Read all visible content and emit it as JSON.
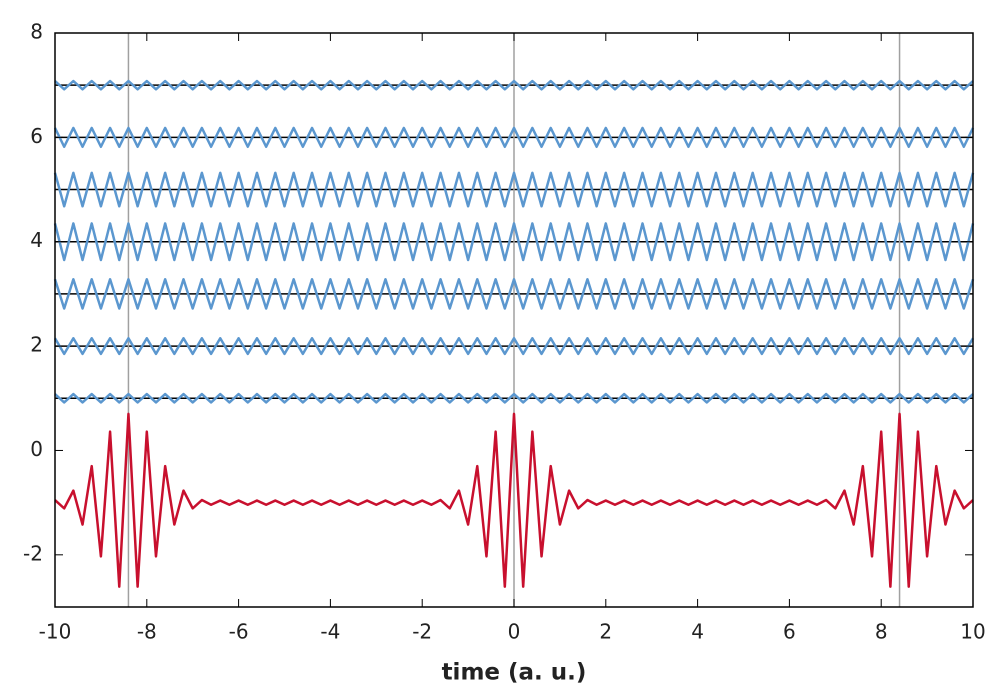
{
  "chart_data": {
    "type": "line",
    "xlabel": "time (a. u.)",
    "xlim": [
      -10,
      10
    ],
    "ylim": [
      -3,
      8
    ],
    "xticks": [
      -10,
      -8,
      -6,
      -4,
      -2,
      0,
      2,
      4,
      6,
      8,
      10
    ],
    "yticks": [
      -2,
      0,
      2,
      4,
      6,
      8
    ],
    "grid": false,
    "vlines": [
      -8.4,
      0,
      8.4
    ],
    "vline_color": "#a0a0a0",
    "hlines": [
      1,
      2,
      3,
      4,
      5,
      6,
      7
    ],
    "hline_color": "#000000",
    "x": [
      -10,
      -9.8,
      -9.6,
      -9.4,
      -9.2,
      -9,
      -8.8,
      -8.6,
      -8.4,
      -8.2,
      -8,
      -7.8,
      -7.6,
      -7.4,
      -7.2,
      -7,
      -6.8,
      -6.6,
      -6.4,
      -6.2,
      -6,
      -5.8,
      -5.6,
      -5.4,
      -5.2,
      -5,
      -4.8,
      -4.6,
      -4.4,
      -4.2,
      -4,
      -3.8,
      -3.6,
      -3.4,
      -3.2,
      -3,
      -2.8,
      -2.6,
      -2.4,
      -2.2,
      -2,
      -1.8,
      -1.6,
      -1.4,
      -1.2,
      -1,
      -0.8,
      -0.6,
      -0.4,
      -0.2,
      0,
      0.2,
      0.4,
      0.6,
      0.8,
      1,
      1.2,
      1.4,
      1.6,
      1.8,
      2,
      2.2,
      2.4,
      2.6,
      2.8,
      3,
      3.2,
      3.4,
      3.6,
      3.8,
      4,
      4.2,
      4.4,
      4.6,
      4.8,
      5,
      5.2,
      5.4,
      5.6,
      5.8,
      6,
      6.2,
      6.4,
      6.6,
      6.8,
      7,
      7.2,
      7.4,
      7.6,
      7.8,
      8,
      8.2,
      8.4,
      8.6,
      8.8,
      9,
      9.2,
      9.4,
      9.6,
      9.8,
      10
    ],
    "series": [
      {
        "color": "#c8102e",
        "values": [
          -0.95,
          -1.11,
          -0.77,
          -1.42,
          -0.3,
          -2.03,
          0.36,
          -2.61,
          0.7,
          -2.61,
          0.36,
          -2.03,
          -0.3,
          -1.42,
          -0.77,
          -1.11,
          -0.95,
          -1.04,
          -0.96,
          -1.04,
          -0.96,
          -1.04,
          -0.96,
          -1.04,
          -0.96,
          -1.04,
          -0.96,
          -1.04,
          -0.96,
          -1.04,
          -0.96,
          -1.04,
          -0.96,
          -1.04,
          -0.96,
          -1.04,
          -0.96,
          -1.04,
          -0.96,
          -1.04,
          -0.96,
          -1.04,
          -0.95,
          -1.11,
          -0.77,
          -1.42,
          -0.3,
          -2.03,
          0.36,
          -2.61,
          0.7,
          -2.61,
          0.36,
          -2.03,
          -0.3,
          -1.42,
          -0.77,
          -1.11,
          -0.95,
          -1.04,
          -0.96,
          -1.04,
          -0.96,
          -1.04,
          -0.96,
          -1.04,
          -0.96,
          -1.04,
          -0.96,
          -1.04,
          -0.96,
          -1.04,
          -0.96,
          -1.04,
          -0.96,
          -1.04,
          -0.96,
          -1.04,
          -0.96,
          -1.04,
          -0.96,
          -1.04,
          -0.96,
          -1.04,
          -0.95,
          -1.11,
          -0.77,
          -1.42,
          -0.3,
          -2.03,
          0.36,
          -2.61,
          0.7,
          -2.61,
          0.36,
          -2.03,
          -0.3,
          -1.42,
          -0.77,
          -1.11,
          -0.95
        ]
      },
      {
        "color": "#5b97cf",
        "values": [
          1.08,
          0.92,
          1.08,
          0.92,
          1.08,
          0.92,
          1.08,
          0.92,
          1.08,
          0.92,
          1.08,
          0.92,
          1.08,
          0.92,
          1.08,
          0.92,
          1.08,
          0.92,
          1.08,
          0.92,
          1.08,
          0.92,
          1.08,
          0.92,
          1.08,
          0.92,
          1.08,
          0.92,
          1.08,
          0.92,
          1.08,
          0.92,
          1.08,
          0.92,
          1.08,
          0.92,
          1.08,
          0.92,
          1.08,
          0.92,
          1.08,
          0.92,
          1.08,
          0.92,
          1.08,
          0.92,
          1.08,
          0.92,
          1.08,
          0.92,
          1.08,
          0.92,
          1.08,
          0.92,
          1.08,
          0.92,
          1.08,
          0.92,
          1.08,
          0.92,
          1.08,
          0.92,
          1.08,
          0.92,
          1.08,
          0.92,
          1.08,
          0.92,
          1.08,
          0.92,
          1.08,
          0.92,
          1.08,
          0.92,
          1.08,
          0.92,
          1.08,
          0.92,
          1.08,
          0.92,
          1.08,
          0.92,
          1.08,
          0.92,
          1.08,
          0.92,
          1.08,
          0.92,
          1.08,
          0.92,
          1.08,
          0.92,
          1.08,
          0.92,
          1.08,
          0.92,
          1.08,
          0.92,
          1.08,
          0.92,
          1.08
        ]
      },
      {
        "color": "#5b97cf",
        "values": [
          2.15,
          1.85,
          2.15,
          1.85,
          2.15,
          1.85,
          2.15,
          1.85,
          2.15,
          1.85,
          2.15,
          1.85,
          2.15,
          1.85,
          2.15,
          1.85,
          2.15,
          1.85,
          2.15,
          1.85,
          2.15,
          1.85,
          2.15,
          1.85,
          2.15,
          1.85,
          2.15,
          1.85,
          2.15,
          1.85,
          2.15,
          1.85,
          2.15,
          1.85,
          2.15,
          1.85,
          2.15,
          1.85,
          2.15,
          1.85,
          2.15,
          1.85,
          2.15,
          1.85,
          2.15,
          1.85,
          2.15,
          1.85,
          2.15,
          1.85,
          2.15,
          1.85,
          2.15,
          1.85,
          2.15,
          1.85,
          2.15,
          1.85,
          2.15,
          1.85,
          2.15,
          1.85,
          2.15,
          1.85,
          2.15,
          1.85,
          2.15,
          1.85,
          2.15,
          1.85,
          2.15,
          1.85,
          2.15,
          1.85,
          2.15,
          1.85,
          2.15,
          1.85,
          2.15,
          1.85,
          2.15,
          1.85,
          2.15,
          1.85,
          2.15,
          1.85,
          2.15,
          1.85,
          2.15,
          1.85,
          2.15,
          1.85,
          2.15,
          1.85,
          2.15,
          1.85,
          2.15,
          1.85,
          2.15,
          1.85,
          2.15
        ]
      },
      {
        "color": "#5b97cf",
        "values": [
          3.28,
          2.72,
          3.28,
          2.72,
          3.28,
          2.72,
          3.28,
          2.72,
          3.28,
          2.72,
          3.28,
          2.72,
          3.28,
          2.72,
          3.28,
          2.72,
          3.28,
          2.72,
          3.28,
          2.72,
          3.28,
          2.72,
          3.28,
          2.72,
          3.28,
          2.72,
          3.28,
          2.72,
          3.28,
          2.72,
          3.28,
          2.72,
          3.28,
          2.72,
          3.28,
          2.72,
          3.28,
          2.72,
          3.28,
          2.72,
          3.28,
          2.72,
          3.28,
          2.72,
          3.28,
          2.72,
          3.28,
          2.72,
          3.28,
          2.72,
          3.28,
          2.72,
          3.28,
          2.72,
          3.28,
          2.72,
          3.28,
          2.72,
          3.28,
          2.72,
          3.28,
          2.72,
          3.28,
          2.72,
          3.28,
          2.72,
          3.28,
          2.72,
          3.28,
          2.72,
          3.28,
          2.72,
          3.28,
          2.72,
          3.28,
          2.72,
          3.28,
          2.72,
          3.28,
          2.72,
          3.28,
          2.72,
          3.28,
          2.72,
          3.28,
          2.72,
          3.28,
          2.72,
          3.28,
          2.72,
          3.28,
          2.72,
          3.28,
          2.72,
          3.28,
          2.72,
          3.28,
          2.72,
          3.28,
          2.72,
          3.28
        ]
      },
      {
        "color": "#5b97cf",
        "values": [
          4.35,
          3.65,
          4.35,
          3.65,
          4.35,
          3.65,
          4.35,
          3.65,
          4.35,
          3.65,
          4.35,
          3.65,
          4.35,
          3.65,
          4.35,
          3.65,
          4.35,
          3.65,
          4.35,
          3.65,
          4.35,
          3.65,
          4.35,
          3.65,
          4.35,
          3.65,
          4.35,
          3.65,
          4.35,
          3.65,
          4.35,
          3.65,
          4.35,
          3.65,
          4.35,
          3.65,
          4.35,
          3.65,
          4.35,
          3.65,
          4.35,
          3.65,
          4.35,
          3.65,
          4.35,
          3.65,
          4.35,
          3.65,
          4.35,
          3.65,
          4.35,
          3.65,
          4.35,
          3.65,
          4.35,
          3.65,
          4.35,
          3.65,
          4.35,
          3.65,
          4.35,
          3.65,
          4.35,
          3.65,
          4.35,
          3.65,
          4.35,
          3.65,
          4.35,
          3.65,
          4.35,
          3.65,
          4.35,
          3.65,
          4.35,
          3.65,
          4.35,
          3.65,
          4.35,
          3.65,
          4.35,
          3.65,
          4.35,
          3.65,
          4.35,
          3.65,
          4.35,
          3.65,
          4.35,
          3.65,
          4.35,
          3.65,
          4.35,
          3.65,
          4.35,
          3.65,
          4.35,
          3.65,
          4.35,
          3.65,
          4.35
        ]
      },
      {
        "color": "#5b97cf",
        "values": [
          5.32,
          4.68,
          5.32,
          4.68,
          5.32,
          4.68,
          5.32,
          4.68,
          5.32,
          4.68,
          5.32,
          4.68,
          5.32,
          4.68,
          5.32,
          4.68,
          5.32,
          4.68,
          5.32,
          4.68,
          5.32,
          4.68,
          5.32,
          4.68,
          5.32,
          4.68,
          5.32,
          4.68,
          5.32,
          4.68,
          5.32,
          4.68,
          5.32,
          4.68,
          5.32,
          4.68,
          5.32,
          4.68,
          5.32,
          4.68,
          5.32,
          4.68,
          5.32,
          4.68,
          5.32,
          4.68,
          5.32,
          4.68,
          5.32,
          4.68,
          5.32,
          4.68,
          5.32,
          4.68,
          5.32,
          4.68,
          5.32,
          4.68,
          5.32,
          4.68,
          5.32,
          4.68,
          5.32,
          4.68,
          5.32,
          4.68,
          5.32,
          4.68,
          5.32,
          4.68,
          5.32,
          4.68,
          5.32,
          4.68,
          5.32,
          4.68,
          5.32,
          4.68,
          5.32,
          4.68,
          5.32,
          4.68,
          5.32,
          4.68,
          5.32,
          4.68,
          5.32,
          4.68,
          5.32,
          4.68,
          5.32,
          4.68,
          5.32,
          4.68,
          5.32,
          4.68,
          5.32,
          4.68,
          5.32,
          4.68,
          5.32
        ]
      },
      {
        "color": "#5b97cf",
        "values": [
          6.18,
          5.82,
          6.18,
          5.82,
          6.18,
          5.82,
          6.18,
          5.82,
          6.18,
          5.82,
          6.18,
          5.82,
          6.18,
          5.82,
          6.18,
          5.82,
          6.18,
          5.82,
          6.18,
          5.82,
          6.18,
          5.82,
          6.18,
          5.82,
          6.18,
          5.82,
          6.18,
          5.82,
          6.18,
          5.82,
          6.18,
          5.82,
          6.18,
          5.82,
          6.18,
          5.82,
          6.18,
          5.82,
          6.18,
          5.82,
          6.18,
          5.82,
          6.18,
          5.82,
          6.18,
          5.82,
          6.18,
          5.82,
          6.18,
          5.82,
          6.18,
          5.82,
          6.18,
          5.82,
          6.18,
          5.82,
          6.18,
          5.82,
          6.18,
          5.82,
          6.18,
          5.82,
          6.18,
          5.82,
          6.18,
          5.82,
          6.18,
          5.82,
          6.18,
          5.82,
          6.18,
          5.82,
          6.18,
          5.82,
          6.18,
          5.82,
          6.18,
          5.82,
          6.18,
          5.82,
          6.18,
          5.82,
          6.18,
          5.82,
          6.18,
          5.82,
          6.18,
          5.82,
          6.18,
          5.82,
          6.18,
          5.82,
          6.18,
          5.82,
          6.18,
          5.82,
          6.18,
          5.82,
          6.18,
          5.82,
          6.18
        ]
      },
      {
        "color": "#5b97cf",
        "values": [
          7.08,
          6.92,
          7.08,
          6.92,
          7.08,
          6.92,
          7.08,
          6.92,
          7.08,
          6.92,
          7.08,
          6.92,
          7.08,
          6.92,
          7.08,
          6.92,
          7.08,
          6.92,
          7.08,
          6.92,
          7.08,
          6.92,
          7.08,
          6.92,
          7.08,
          6.92,
          7.08,
          6.92,
          7.08,
          6.92,
          7.08,
          6.92,
          7.08,
          6.92,
          7.08,
          6.92,
          7.08,
          6.92,
          7.08,
          6.92,
          7.08,
          6.92,
          7.08,
          6.92,
          7.08,
          6.92,
          7.08,
          6.92,
          7.08,
          6.92,
          7.08,
          6.92,
          7.08,
          6.92,
          7.08,
          6.92,
          7.08,
          6.92,
          7.08,
          6.92,
          7.08,
          6.92,
          7.08,
          6.92,
          7.08,
          6.92,
          7.08,
          6.92,
          7.08,
          6.92,
          7.08,
          6.92,
          7.08,
          6.92,
          7.08,
          6.92,
          7.08,
          6.92,
          7.08,
          6.92,
          7.08,
          6.92,
          7.08,
          6.92,
          7.08,
          6.92,
          7.08,
          6.92,
          7.08,
          6.92,
          7.08,
          6.92,
          7.08,
          6.92,
          7.08,
          6.92,
          7.08,
          6.92,
          7.08,
          6.92,
          7.08
        ]
      }
    ]
  }
}
